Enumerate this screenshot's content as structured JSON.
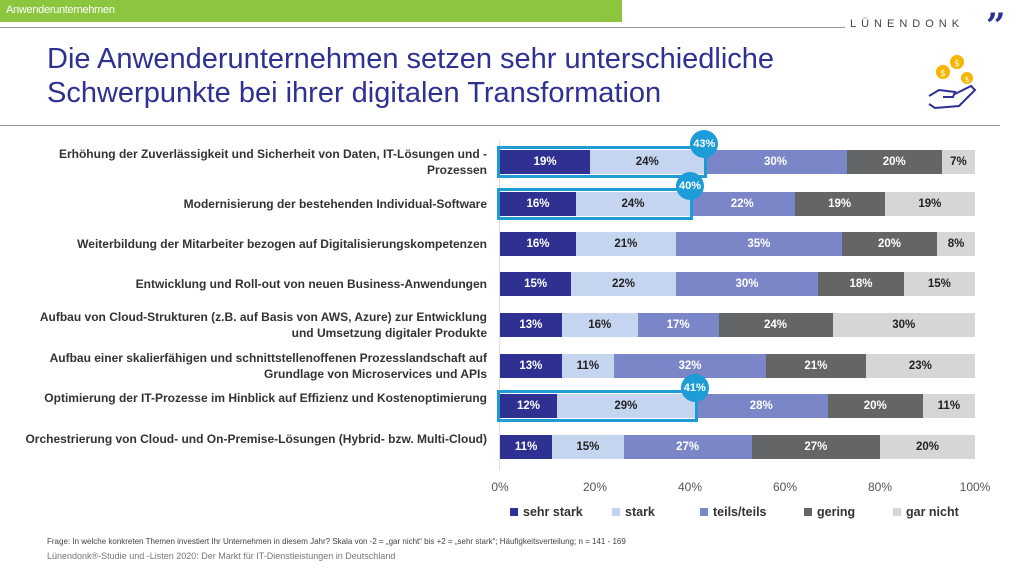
{
  "header": {
    "section_tag": "Anwenderunternehmen",
    "logo": "LÜNENDONK",
    "logo_mark": "”"
  },
  "title_line1": "Die Anwenderunternehmen setzen sehr unterschiedliche",
  "title_line2": "Schwerpunkte bei ihrer digitalen Transformation",
  "icon": "hand-with-coins-icon",
  "chart_data": {
    "type": "bar",
    "orientation": "horizontal",
    "stacked": true,
    "percent": true,
    "categories": [
      "Erhöhung der Zuverlässigkeit und Sicherheit von Daten, IT-Lösungen und -Prozessen",
      "Modernisierung der bestehenden Individual-Software",
      "Weiterbildung der Mitarbeiter bezogen auf Digitalisierungskompetenzen",
      "Entwicklung und Roll-out von neuen Business-Anwendungen",
      "Aufbau von Cloud-Strukturen (z.B. auf Basis von AWS, Azure) zur Entwicklung und Umsetzung digitaler Produkte",
      "Aufbau einer skalierfähigen und schnittstellenoffenen Prozesslandschaft auf Grundlage von Microservices und APIs",
      "Optimierung der IT-Prozesse im Hinblick auf Effizienz und Kostenoptimierung",
      "Orchestrierung von Cloud- und On-Premise-Lösungen (Hybrid- bzw. Multi-Cloud)"
    ],
    "series": [
      {
        "name": "sehr stark",
        "color": "#2e3192",
        "text_color": "#ffffff",
        "values": [
          19,
          16,
          16,
          15,
          13,
          13,
          12,
          11
        ]
      },
      {
        "name": "stark",
        "color": "#c5d5f0",
        "text_color": "#222222",
        "values": [
          24,
          24,
          21,
          22,
          16,
          11,
          29,
          15
        ]
      },
      {
        "name": "teils/teils",
        "color": "#7b86c8",
        "text_color": "#ffffff",
        "values": [
          30,
          22,
          35,
          30,
          17,
          32,
          28,
          27
        ]
      },
      {
        "name": "gering",
        "color": "#636567",
        "text_color": "#ffffff",
        "values": [
          20,
          19,
          20,
          18,
          24,
          21,
          20,
          27
        ]
      },
      {
        "name": "gar nicht",
        "color": "#d4d6d8",
        "text_color": "#222222",
        "values": [
          7,
          19,
          8,
          15,
          30,
          23,
          11,
          20
        ]
      }
    ],
    "highlights": [
      {
        "row": 0,
        "label": "43%",
        "value": 43
      },
      {
        "row": 1,
        "label": "40%",
        "value": 40
      },
      {
        "row": 6,
        "label": "41%",
        "value": 41
      }
    ],
    "highlight_color": "#1d9cd8",
    "xticks": [
      "0%",
      "20%",
      "40%",
      "60%",
      "80%",
      "100%"
    ],
    "xlim": [
      0,
      100
    ],
    "legend": "bottom"
  },
  "footer": {
    "question": "Frage: In welche konkreten Themen investiert Ihr Unternehmen in diesem Jahr? Skala von -2 = „gar nicht“ bis +2 = „sehr stark“; Häufigkeitsverteilung; n = 141 - 169",
    "source": "Lünendonk®-Studie und -Listen 2020: Der Markt für IT-Dienstleistungen in Deutschland"
  }
}
